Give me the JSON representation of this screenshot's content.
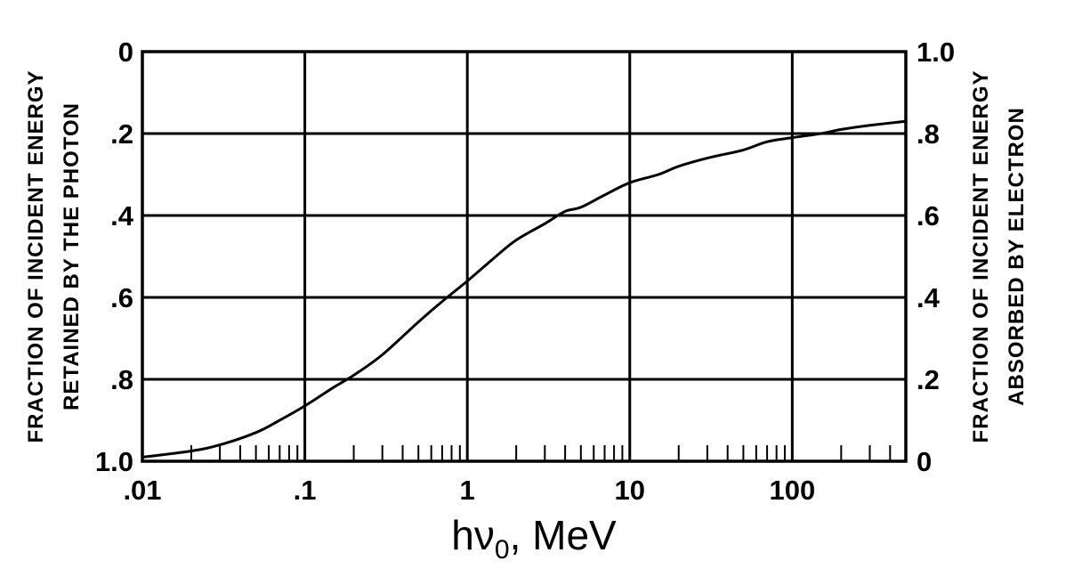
{
  "chart_data": {
    "type": "line",
    "x_scale": "log",
    "xlim": [
      0.01,
      500
    ],
    "left_ylim": [
      0,
      1.0
    ],
    "left_y_inverted": true,
    "right_ylim": [
      0,
      1.0
    ],
    "grid": "on",
    "xlabel": {
      "main": "hν",
      "sub": "0",
      "suffix": ", MeV"
    },
    "left_ylabel_lines": [
      "FRACTION OF INCIDENT ENERGY",
      "RETAINED BY THE PHOTON"
    ],
    "right_ylabel_lines": [
      "FRACTION OF INCIDENT ENERGY",
      "ABSORBED BY ELECTRON"
    ],
    "x_ticks": [
      {
        "value": 0.01,
        "label": ".01"
      },
      {
        "value": 0.1,
        "label": ".1"
      },
      {
        "value": 1,
        "label": "1"
      },
      {
        "value": 10,
        "label": "10"
      },
      {
        "value": 100,
        "label": "100"
      }
    ],
    "left_ticks": [
      {
        "value": 0,
        "label": "0"
      },
      {
        "value": 0.2,
        "label": ".2"
      },
      {
        "value": 0.4,
        "label": ".4"
      },
      {
        "value": 0.6,
        "label": ".6"
      },
      {
        "value": 0.8,
        "label": ".8"
      },
      {
        "value": 1.0,
        "label": "1.0"
      }
    ],
    "right_ticks": [
      {
        "value": 1.0,
        "label": "1.0"
      },
      {
        "value": 0.8,
        "label": ".8"
      },
      {
        "value": 0.6,
        "label": ".6"
      },
      {
        "value": 0.4,
        "label": ".4"
      },
      {
        "value": 0.2,
        "label": ".2"
      },
      {
        "value": 0,
        "label": "0"
      }
    ],
    "series": [
      {
        "x": [
          0.01,
          0.02,
          0.03,
          0.05,
          0.07,
          0.1,
          0.15,
          0.2,
          0.3,
          0.5,
          0.7,
          1,
          1.5,
          2,
          3,
          4,
          5,
          7,
          10,
          15,
          20,
          30,
          50,
          70,
          100,
          150,
          200,
          300,
          500
        ],
        "absorbed_by_electron": [
          0.01,
          0.025,
          0.04,
          0.07,
          0.1,
          0.135,
          0.18,
          0.21,
          0.26,
          0.34,
          0.39,
          0.44,
          0.5,
          0.54,
          0.58,
          0.61,
          0.62,
          0.65,
          0.68,
          0.7,
          0.72,
          0.74,
          0.76,
          0.78,
          0.79,
          0.8,
          0.81,
          0.82,
          0.83
        ]
      }
    ]
  }
}
